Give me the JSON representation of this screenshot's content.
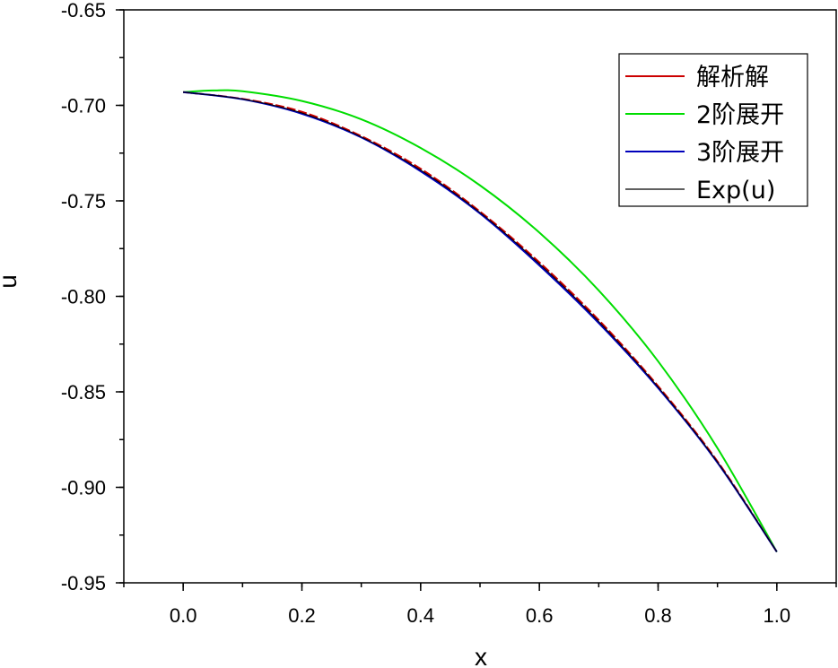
{
  "chart_data": {
    "type": "line",
    "title": "",
    "xlabel": "x",
    "ylabel": "u",
    "xlim": [
      -0.1,
      1.1
    ],
    "ylim": [
      -0.95,
      -0.65
    ],
    "xticks": [
      "0.0",
      "0.2",
      "0.4",
      "0.6",
      "0.8",
      "1.0"
    ],
    "yticks": [
      "-0.65",
      "-0.70",
      "-0.75",
      "-0.80",
      "-0.85",
      "-0.90",
      "-0.95"
    ],
    "grid": false,
    "legend_position": "top-right",
    "series": [
      {
        "name": "解析解",
        "color": "#cc0000",
        "x": [
          0.0,
          0.1,
          0.2,
          0.3,
          0.4,
          0.5,
          0.6,
          0.7,
          0.8,
          0.9,
          1.0
        ],
        "y": [
          -0.6931,
          -0.6966,
          -0.7034,
          -0.7161,
          -0.7332,
          -0.7556,
          -0.7822,
          -0.8124,
          -0.847,
          -0.8864,
          -0.9338
        ]
      },
      {
        "name": "2阶展开",
        "color": "#00dd00",
        "x": [
          0.0,
          0.05,
          0.1,
          0.2,
          0.3,
          0.4,
          0.5,
          0.6,
          0.7,
          0.8,
          0.9,
          1.0
        ],
        "y": [
          -0.6931,
          -0.6922,
          -0.6926,
          -0.6977,
          -0.7073,
          -0.7223,
          -0.7419,
          -0.7666,
          -0.7969,
          -0.834,
          -0.8795,
          -0.9338
        ]
      },
      {
        "name": "3阶展开",
        "color": "#0000bb",
        "x": [
          0.0,
          0.1,
          0.2,
          0.3,
          0.4,
          0.5,
          0.6,
          0.7,
          0.8,
          0.9,
          1.0
        ],
        "y": [
          -0.6931,
          -0.6968,
          -0.7044,
          -0.7168,
          -0.7345,
          -0.7566,
          -0.7838,
          -0.814,
          -0.848,
          -0.8871,
          -0.9338
        ]
      },
      {
        "name": "Exp(u)",
        "color": "#000000",
        "x": [
          0.0,
          0.1,
          0.2,
          0.3,
          0.4,
          0.5,
          0.6,
          0.7,
          0.8,
          0.9,
          1.0
        ],
        "y": [
          -0.6931,
          -0.6967,
          -0.704,
          -0.7165,
          -0.7339,
          -0.7561,
          -0.783,
          -0.8132,
          -0.8475,
          -0.8868,
          -0.9338
        ]
      }
    ]
  }
}
